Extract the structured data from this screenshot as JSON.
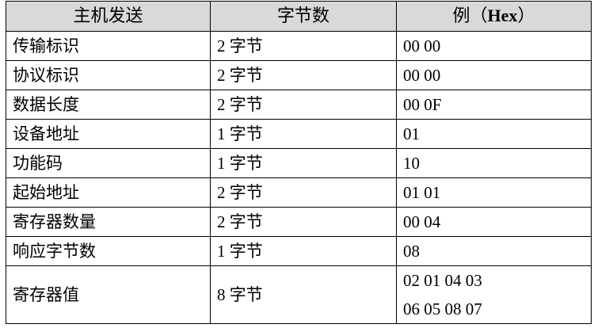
{
  "header": {
    "col1": "主机发送",
    "col2": "字节数",
    "col3_prefix": "例（",
    "col3_hex": "Hex",
    "col3_suffix": "）"
  },
  "rows": [
    {
      "name": "传输标识",
      "bytes": "2 字节",
      "example": "00 00"
    },
    {
      "name": "协议标识",
      "bytes": "2 字节",
      "example": "00 00"
    },
    {
      "name": "数据长度",
      "bytes": "2 字节",
      "example": "00 0F"
    },
    {
      "name": "设备地址",
      "bytes": "1 字节",
      "example": "01"
    },
    {
      "name": "功能码",
      "bytes": "1 字节",
      "example": "10"
    },
    {
      "name": "起始地址",
      "bytes": "2 字节",
      "example": "01 01"
    },
    {
      "name": "寄存器数量",
      "bytes": "2 字节",
      "example": "00 04"
    },
    {
      "name": "响应字节数",
      "bytes": "1 字节",
      "example": "08"
    },
    {
      "name": "寄存器值",
      "bytes": "8 字节",
      "example_line1": "02 01 04 03",
      "example_line2": "06 05 08 07"
    }
  ],
  "colors": {
    "header_bg": "#d9d9d9",
    "border": "#000000"
  }
}
